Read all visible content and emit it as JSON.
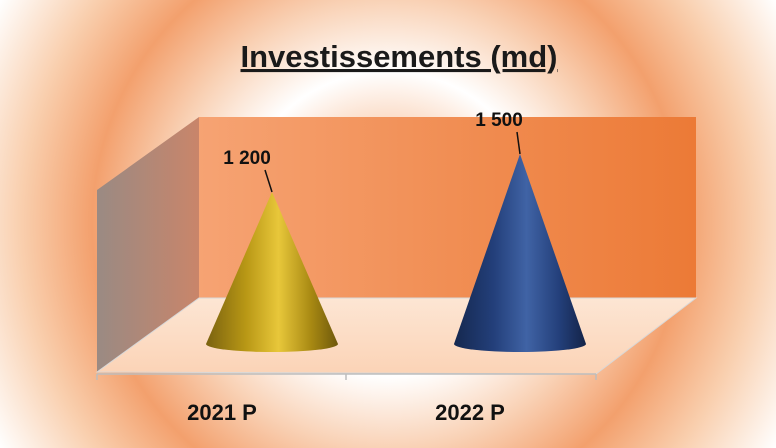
{
  "chart_data": {
    "type": "bar",
    "shape": "cone",
    "title": "Investissements (md)",
    "categories": [
      "2021 P",
      "2022 P"
    ],
    "values": [
      1200,
      1500
    ],
    "value_labels": [
      "1 200",
      "1 500"
    ],
    "colors": [
      "#b59512",
      "#1f3f78"
    ],
    "wall_color": "#f08a4a",
    "ylim": [
      0,
      1600
    ],
    "grid": false,
    "legend": "none"
  }
}
